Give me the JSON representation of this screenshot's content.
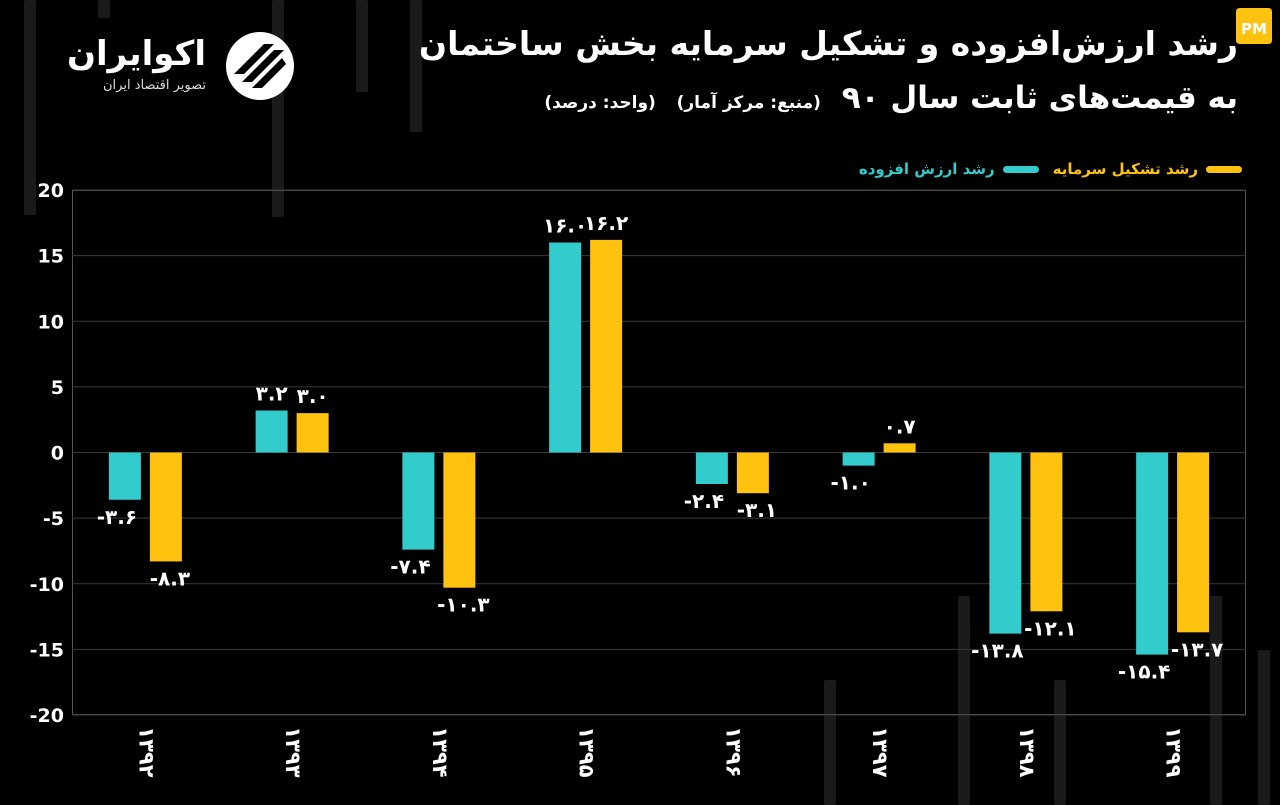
{
  "header": {
    "title_line1": "رشد ارزش‌افزوده و تشکیل سرمایه بخش ساختمان",
    "title_line2": "به قیمت‌های ثابت سال ۹۰",
    "source": "(منبع: مرکز آمار)",
    "unit": "(واحد: درصد)"
  },
  "brand": {
    "name": "اکوایران",
    "tagline": "تصویر اقتصاد ایران",
    "badge_text": "PM"
  },
  "colors": {
    "background": "#000000",
    "value_added": "#33cccc",
    "capital_formation": "#ffc20e",
    "grid": "#3a3a3a"
  },
  "chart_data": {
    "type": "bar",
    "categories": [
      "۱۳۹۲",
      "۱۳۹۳",
      "۱۳۹۴",
      "۱۳۹۵",
      "۱۳۹۶",
      "۱۳۹۷",
      "۱۳۹۸",
      "۱۳۹۹"
    ],
    "series": [
      {
        "name": "رشد ارزش افزوده",
        "color": "#33cccc",
        "values": [
          -3.6,
          3.2,
          -7.4,
          16.0,
          -2.4,
          -1.0,
          -13.8,
          -15.4
        ],
        "labels": [
          "-۳.۶",
          "۳.۲",
          "-۷.۴",
          "۱۶.۰",
          "-۲.۴",
          "-۱.۰",
          "-۱۳.۸",
          "-۱۵.۴"
        ]
      },
      {
        "name": "رشد تشکیل سرمایه",
        "color": "#ffc20e",
        "values": [
          -8.3,
          3.0,
          -10.3,
          16.2,
          -3.1,
          0.7,
          -12.1,
          -13.7
        ],
        "labels": [
          "-۸.۳",
          "۳.۰",
          "-۱۰.۳",
          "۱۶.۲",
          "-۳.۱",
          "۰.۷",
          "-۱۲.۱",
          "-۱۳.۷"
        ]
      }
    ],
    "yticks": [
      20,
      15,
      10,
      5,
      0,
      -5,
      -10,
      -15,
      -20
    ],
    "ytick_labels": [
      "20",
      "15",
      "10",
      "5",
      "0",
      "-5",
      "-10",
      "-15",
      "-20"
    ],
    "ylim": [
      -20,
      20
    ],
    "grid": true,
    "legend": "top-right"
  }
}
